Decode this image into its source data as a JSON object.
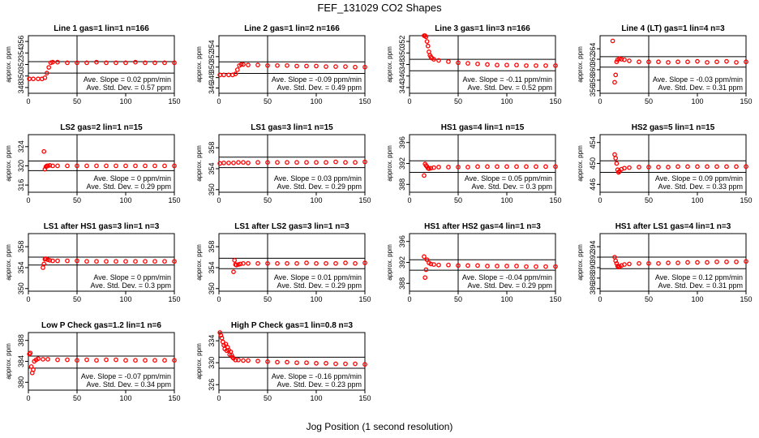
{
  "figure": {
    "title": "FEF_131029  CO2 Shapes",
    "xlabel": "Jog Position (1 second resolution)",
    "marker_color": "#ff0000"
  },
  "chart_data": [
    {
      "type": "scatter",
      "title": "Line 1 gas=1 lin=1 n=166",
      "ylabel": "approx. ppm",
      "xlim": [
        0,
        150
      ],
      "ylim": [
        347,
        357
      ],
      "yticks": [
        348,
        350,
        352,
        354,
        356
      ],
      "xticks": [
        0,
        50,
        100,
        150
      ],
      "hlines": [
        352.5,
        350.5
      ],
      "vline": 50,
      "slope_text": "Ave. Slope = 0.02 ppm/min",
      "std_text": "Ave. Std. Dev. = 0.57 ppm",
      "series": [
        {
          "x": [
            1,
            5,
            10,
            14,
            17,
            19,
            21,
            23,
            25,
            30,
            40,
            50,
            60,
            70,
            80,
            90,
            100,
            110,
            120,
            130,
            140,
            150
          ],
          "y": [
            349.5,
            349.5,
            349.5,
            349.5,
            349.7,
            350.5,
            351.5,
            352.3,
            352.4,
            352.4,
            352.3,
            352.3,
            352.3,
            352.4,
            352.3,
            352.3,
            352.3,
            352.4,
            352.3,
            352.3,
            352.3,
            352.3
          ]
        }
      ]
    },
    {
      "type": "scatter",
      "title": "Line 2 gas=1 lin=2 n=166",
      "ylabel": "approx. ppm",
      "xlim": [
        0,
        150
      ],
      "ylim": [
        345,
        356
      ],
      "yticks": [
        346,
        348,
        350,
        352,
        354
      ],
      "xticks": [
        0,
        50,
        100,
        150
      ],
      "hlines": [
        351,
        348.8
      ],
      "vline": 50,
      "slope_text": "Ave. Slope = -0.09 ppm/min",
      "std_text": "Ave. Std. Dev. = 0.49 ppm",
      "series": [
        {
          "x": [
            1,
            5,
            10,
            14,
            17,
            19,
            21,
            23,
            25,
            30,
            40,
            50,
            60,
            70,
            80,
            90,
            100,
            110,
            120,
            130,
            140,
            150
          ],
          "y": [
            348.5,
            348.5,
            348.5,
            348.5,
            348.7,
            349.5,
            350.3,
            350.5,
            350.5,
            350.4,
            350.4,
            350.3,
            350.3,
            350.3,
            350.2,
            350.2,
            350.2,
            350.1,
            350.1,
            350.1,
            350.0,
            350.0
          ]
        }
      ]
    },
    {
      "type": "scatter",
      "title": "Line 3 gas=1 lin=3 n=166",
      "ylabel": "approx. ppm",
      "xlim": [
        0,
        150
      ],
      "ylim": [
        343,
        353
      ],
      "yticks": [
        344,
        346,
        348,
        350,
        352
      ],
      "xticks": [
        0,
        50,
        100,
        150
      ],
      "hlines": [
        348.9,
        346.9
      ],
      "vline": 50,
      "slope_text": "Ave. Slope = -0.11 ppm/min",
      "std_text": "Ave. Std. Dev. = 0.52 ppm",
      "series": [
        {
          "x": [
            15,
            16,
            17,
            18,
            19,
            20,
            21,
            22,
            23,
            25,
            30,
            40,
            50,
            60,
            70,
            80,
            90,
            100,
            110,
            120,
            130,
            140,
            150
          ],
          "y": [
            353,
            353,
            352.8,
            352,
            351.2,
            350.2,
            349.6,
            349.3,
            349.1,
            348.9,
            348.7,
            348.5,
            348.3,
            348.2,
            348.1,
            348.0,
            347.9,
            347.9,
            347.9,
            347.8,
            347.8,
            347.8,
            347.8
          ]
        }
      ]
    },
    {
      "type": "scatter",
      "title": "Line 4 (LT) gas=1 lin=4 n=3",
      "ylabel": "approx. ppm",
      "xlim": [
        0,
        150
      ],
      "ylim": [
        355.5,
        366.5
      ],
      "yticks": [
        356,
        358,
        360,
        362,
        364
      ],
      "xticks": [
        0,
        50,
        100,
        150
      ],
      "hlines": [
        362.5,
        360.5
      ],
      "vline": 50,
      "slope_text": "Ave. Slope = -0.03 ppm/min",
      "std_text": "Ave. Std. Dev. = 0.31 ppm",
      "series": [
        {
          "x": [
            13,
            15,
            16,
            17,
            18,
            20,
            22,
            25,
            30,
            40,
            50,
            60,
            70,
            80,
            90,
            100,
            110,
            120,
            130,
            140,
            150
          ],
          "y": [
            365.5,
            357.6,
            359,
            361.5,
            361.9,
            362.1,
            362,
            361.9,
            361.7,
            361.5,
            361.5,
            361.5,
            361.4,
            361.5,
            361.5,
            361.6,
            361.4,
            361.5,
            361.6,
            361.4,
            361.5
          ]
        }
      ]
    },
    {
      "type": "scatter",
      "title": "LS2 gas=2 lin=1 n=15",
      "ylabel": "approx. ppm",
      "xlim": [
        0,
        150
      ],
      "ylim": [
        314.5,
        326.5
      ],
      "yticks": [
        316,
        320,
        324
      ],
      "xticks": [
        0,
        50,
        100,
        150
      ],
      "hlines": [
        321,
        319
      ],
      "vline": 50,
      "slope_text": "Ave. Slope = 0 ppm/min",
      "std_text": "Ave. Std. Dev. = 0.29 ppm",
      "series": [
        {
          "x": [
            16,
            17,
            18,
            19,
            20,
            22,
            25,
            30,
            40,
            50,
            60,
            70,
            80,
            90,
            100,
            110,
            120,
            130,
            140,
            150
          ],
          "y": [
            323,
            319.3,
            319.8,
            320,
            320,
            320.1,
            320,
            320,
            320,
            320,
            320,
            320,
            320,
            320,
            320,
            320,
            320,
            320,
            320,
            320
          ]
        }
      ]
    },
    {
      "type": "scatter",
      "title": "LS1 gas=3 lin=1 n=15",
      "ylabel": "approx. ppm",
      "xlim": [
        0,
        150
      ],
      "ylim": [
        349.5,
        360.5
      ],
      "yticks": [
        350,
        354,
        358
      ],
      "xticks": [
        0,
        50,
        100,
        150
      ],
      "hlines": [
        356.2,
        354.2
      ],
      "vline": 50,
      "slope_text": "Ave. Slope = 0.03 ppm/min",
      "std_text": "Ave. Std. Dev. = 0.29 ppm",
      "series": [
        {
          "x": [
            1,
            5,
            10,
            15,
            20,
            25,
            30,
            40,
            50,
            60,
            70,
            80,
            90,
            100,
            110,
            120,
            130,
            140,
            150
          ],
          "y": [
            355,
            355.1,
            355.1,
            355.1,
            355.2,
            355.2,
            355.1,
            355.2,
            355.2,
            355.2,
            355.2,
            355.2,
            355.2,
            355.2,
            355.2,
            355.3,
            355.2,
            355.2,
            355.3
          ]
        }
      ]
    },
    {
      "type": "scatter",
      "title": "HS1 gas=4 lin=1 n=15",
      "ylabel": "approx. ppm",
      "xlim": [
        0,
        150
      ],
      "ylim": [
        386.5,
        397.5
      ],
      "yticks": [
        388,
        392,
        396
      ],
      "xticks": [
        0,
        50,
        100,
        150
      ],
      "hlines": [
        392.5,
        390.3
      ],
      "vline": 50,
      "slope_text": "Ave. Slope = 0.05 ppm/min",
      "std_text": "Ave. Std. Dev. = 0.3 ppm",
      "series": [
        {
          "x": [
            15,
            16,
            17,
            18,
            19,
            20,
            22,
            25,
            30,
            40,
            50,
            60,
            70,
            80,
            90,
            100,
            110,
            120,
            130,
            140,
            150
          ],
          "y": [
            389.7,
            391.9,
            391.6,
            391.4,
            391.1,
            391,
            391.1,
            391.2,
            391.3,
            391.3,
            391.3,
            391.3,
            391.4,
            391.4,
            391.4,
            391.4,
            391.4,
            391.4,
            391.4,
            391.4,
            391.4
          ]
        }
      ]
    },
    {
      "type": "scatter",
      "title": "HS2 gas=5 lin=1 n=15",
      "ylabel": "approx. ppm",
      "xlim": [
        0,
        150
      ],
      "ylim": [
        444.5,
        455.5
      ],
      "yticks": [
        446,
        450,
        454
      ],
      "xticks": [
        0,
        50,
        100,
        150
      ],
      "hlines": [
        450.5,
        448.3
      ],
      "vline": 50,
      "slope_text": "Ave. Slope = 0.09 ppm/min",
      "std_text": "Ave. Std. Dev. = 0.33 ppm",
      "series": [
        {
          "x": [
            15,
            16,
            17,
            18,
            19,
            20,
            22,
            25,
            30,
            40,
            50,
            60,
            70,
            80,
            90,
            100,
            110,
            120,
            130,
            140,
            150
          ],
          "y": [
            451.7,
            451,
            450,
            448.8,
            448.3,
            448.5,
            448.9,
            449.1,
            449.2,
            449.3,
            449.3,
            449.3,
            449.3,
            449.4,
            449.4,
            449.4,
            449.4,
            449.4,
            449.4,
            449.4,
            449.4
          ]
        }
      ]
    },
    {
      "type": "scatter",
      "title": "LS1 after HS1 gas=3 lin=1 n=3",
      "ylabel": "approx. ppm",
      "xlim": [
        0,
        150
      ],
      "ylim": [
        349.5,
        360.5
      ],
      "yticks": [
        350,
        354,
        358
      ],
      "xticks": [
        0,
        50,
        100,
        150
      ],
      "hlines": [
        356,
        354.5
      ],
      "vline": 50,
      "slope_text": "Ave. Slope = 0 ppm/min",
      "std_text": "Ave. Std. Dev. = 0.3 ppm",
      "series": [
        {
          "x": [
            15,
            16,
            17,
            18,
            20,
            22,
            25,
            30,
            40,
            50,
            60,
            70,
            80,
            90,
            100,
            110,
            120,
            130,
            140,
            150
          ],
          "y": [
            354,
            354.7,
            355.6,
            355.7,
            355.5,
            355.4,
            355.3,
            355.3,
            355.3,
            355.3,
            355.2,
            355.2,
            355.2,
            355.2,
            355.2,
            355.2,
            355.2,
            355.2,
            355.2,
            355.2
          ]
        }
      ]
    },
    {
      "type": "scatter",
      "title": "LS1 after LS2 gas=3 lin=1 n=3",
      "ylabel": "approx. ppm",
      "xlim": [
        0,
        150
      ],
      "ylim": [
        349.5,
        360.5
      ],
      "yticks": [
        350,
        354,
        358
      ],
      "xticks": [
        0,
        50,
        100,
        150
      ],
      "hlines": [
        355.8,
        353.8
      ],
      "vline": 50,
      "slope_text": "Ave. Slope = 0.01 ppm/min",
      "std_text": "Ave. Std. Dev. = 0.29 ppm",
      "series": [
        {
          "x": [
            15,
            16,
            17,
            18,
            20,
            22,
            25,
            30,
            40,
            50,
            60,
            70,
            80,
            90,
            100,
            110,
            120,
            130,
            140,
            150
          ],
          "y": [
            353.2,
            355.4,
            354.6,
            354.5,
            354.6,
            354.7,
            354.8,
            354.8,
            354.8,
            354.8,
            354.8,
            354.8,
            354.8,
            354.9,
            354.8,
            354.8,
            354.8,
            354.9,
            354.8,
            354.9
          ]
        }
      ]
    },
    {
      "type": "scatter",
      "title": "HS1 after HS2 gas=4 lin=1 n=3",
      "ylabel": "approx. ppm",
      "xlim": [
        0,
        150
      ],
      "ylim": [
        386.5,
        397.5
      ],
      "yticks": [
        388,
        392,
        396
      ],
      "xticks": [
        0,
        50,
        100,
        150
      ],
      "hlines": [
        392.5,
        390.5
      ],
      "vline": 50,
      "slope_text": "Ave. Slope = -0.04 ppm/min",
      "std_text": "Ave. Std. Dev. = 0.29 ppm",
      "series": [
        {
          "x": [
            15,
            16,
            17,
            18,
            20,
            22,
            25,
            30,
            40,
            50,
            60,
            70,
            80,
            90,
            100,
            110,
            120,
            130,
            140,
            150
          ],
          "y": [
            393.1,
            389.1,
            390.6,
            392.5,
            391.9,
            391.7,
            391.6,
            391.5,
            391.5,
            391.4,
            391.4,
            391.4,
            391.3,
            391.3,
            391.3,
            391.3,
            391.2,
            391.2,
            391.2,
            391.2
          ]
        }
      ]
    },
    {
      "type": "scatter",
      "title": "HS1 after LS1 gas=4 lin=1 n=3",
      "ylabel": "approx. ppm",
      "xlim": [
        0,
        150
      ],
      "ylim": [
        385.5,
        396.5
      ],
      "yticks": [
        386,
        388,
        390,
        392,
        394
      ],
      "xticks": [
        0,
        50,
        100,
        150
      ],
      "hlines": [
        392,
        389.8
      ],
      "vline": 50,
      "slope_text": "Ave. Slope = 0.12 ppm/min",
      "std_text": "Ave. Std. Dev. = 0.31 ppm",
      "series": [
        {
          "x": [
            15,
            16,
            17,
            18,
            19,
            20,
            22,
            25,
            30,
            40,
            50,
            60,
            70,
            80,
            90,
            100,
            110,
            120,
            130,
            140,
            150
          ],
          "y": [
            392,
            391.3,
            390.8,
            390.3,
            390.1,
            390.2,
            390.4,
            390.6,
            390.7,
            390.8,
            390.8,
            390.8,
            390.9,
            390.9,
            391,
            391,
            391,
            391.1,
            391.1,
            391.1,
            391.2
          ]
        }
      ]
    },
    {
      "type": "scatter",
      "title": "Low P Check gas=1.2 lin=1 n=6",
      "ylabel": "approx. ppm",
      "xlim": [
        0,
        150
      ],
      "ylim": [
        378.5,
        389.5
      ],
      "yticks": [
        380,
        384,
        388
      ],
      "xticks": [
        0,
        50,
        100,
        150
      ],
      "hlines": [
        385,
        382.7
      ],
      "vline": 50,
      "slope_text": "Ave. Slope = -0.07 ppm/min",
      "std_text": "Ave. Std. Dev. = 0.34 ppm",
      "series": [
        {
          "x": [
            1,
            2,
            3,
            4,
            5,
            6,
            8,
            10,
            15,
            20,
            30,
            40,
            50,
            60,
            70,
            80,
            90,
            100,
            110,
            120,
            130,
            140,
            150
          ],
          "y": [
            385.4,
            385.6,
            383,
            381.8,
            382.4,
            384,
            384.3,
            384.5,
            384.4,
            384.4,
            384.3,
            384.3,
            384.2,
            384.3,
            384.2,
            384.3,
            384.3,
            384.2,
            384.2,
            384.2,
            384.2,
            384.2,
            384.2
          ]
        }
      ]
    },
    {
      "type": "scatter",
      "title": "High P Check gas=1 lin=0.8 n=3",
      "ylabel": "approx. ppm",
      "xlim": [
        0,
        150
      ],
      "ylim": [
        325,
        335.5
      ],
      "yticks": [
        326,
        330,
        334
      ],
      "xticks": [
        0,
        50,
        100,
        150
      ],
      "hlines": [
        331,
        329
      ],
      "vline": 50,
      "slope_text": "Ave. Slope = -0.16 ppm/min",
      "std_text": "Ave. Std. Dev. = 0.23 ppm",
      "series": [
        {
          "x": [
            1,
            2,
            3,
            4,
            5,
            6,
            7,
            8,
            9,
            10,
            11,
            12,
            13,
            14,
            15,
            17,
            20,
            25,
            30,
            40,
            50,
            60,
            70,
            80,
            90,
            100,
            110,
            120,
            130,
            140,
            150
          ],
          "y": [
            335.5,
            335,
            334.5,
            333.8,
            333.2,
            332.5,
            333.4,
            332.2,
            332.8,
            332.3,
            331.5,
            332,
            331.4,
            331,
            330.8,
            330.5,
            330.5,
            330.4,
            330.4,
            330.3,
            330.2,
            330.1,
            330.1,
            330,
            330,
            329.9,
            329.9,
            329.8,
            329.8,
            329.8,
            329.7
          ]
        }
      ]
    }
  ]
}
